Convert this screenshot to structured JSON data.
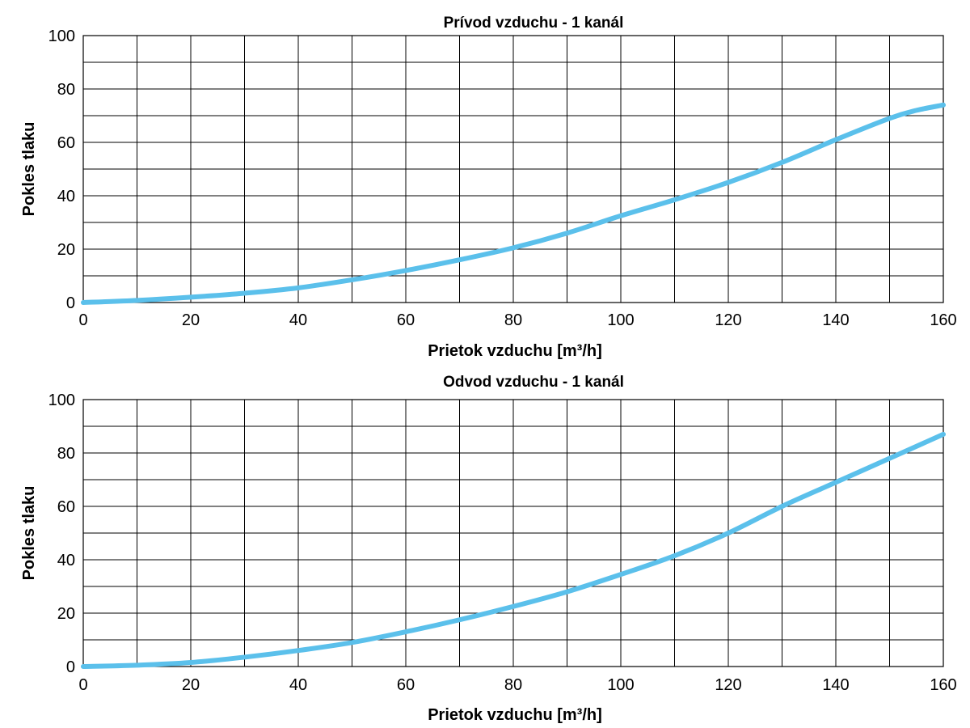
{
  "colors": {
    "series": "#5bc0eb",
    "grid": "#000000"
  },
  "chart_data": [
    {
      "type": "line",
      "title": "Prívod vzduchu - 1 kanál",
      "xlabel": "Prietok vzduchu [m³/h]",
      "ylabel": "Pokles tlaku",
      "xlim": [
        0,
        160
      ],
      "ylim": [
        0,
        100
      ],
      "x_ticks": [
        0,
        20,
        40,
        60,
        80,
        100,
        120,
        140,
        160
      ],
      "y_ticks": [
        0,
        20,
        40,
        60,
        80,
        100
      ],
      "x_tick_labels": [
        "0",
        "20",
        "40",
        "60",
        "80",
        "100",
        "120",
        "140",
        "160"
      ],
      "y_tick_labels": [
        "0",
        "20",
        "40",
        "60",
        "80",
        "100"
      ],
      "grid": true,
      "series": [
        {
          "x": [
            0,
            10,
            20,
            30,
            40,
            50,
            60,
            70,
            80,
            90,
            100,
            110,
            120,
            130,
            140,
            150,
            155,
            160
          ],
          "values": [
            0,
            0.8,
            2,
            3.5,
            5.5,
            8.5,
            12,
            16,
            20.5,
            26,
            32.5,
            38.5,
            45,
            52.5,
            61,
            69,
            72,
            74
          ]
        }
      ]
    },
    {
      "type": "line",
      "title": "Odvod vzduchu - 1 kanál",
      "xlabel": "Prietok vzduchu [m³/h]",
      "ylabel": "Pokles tlaku",
      "xlim": [
        0,
        160
      ],
      "ylim": [
        0,
        100
      ],
      "x_ticks": [
        0,
        20,
        40,
        60,
        80,
        100,
        120,
        140,
        160
      ],
      "y_ticks": [
        0,
        20,
        40,
        60,
        80,
        100
      ],
      "x_tick_labels": [
        "0",
        "20",
        "40",
        "60",
        "80",
        "100",
        "120",
        "140",
        "160"
      ],
      "y_tick_labels": [
        "0",
        "20",
        "40",
        "60",
        "80",
        "100"
      ],
      "grid": true,
      "series": [
        {
          "x": [
            0,
            10,
            20,
            30,
            40,
            50,
            60,
            70,
            80,
            90,
            100,
            110,
            120,
            130,
            140,
            150,
            160
          ],
          "values": [
            0,
            0.5,
            1.5,
            3.5,
            6,
            9,
            13,
            17.5,
            22.5,
            28,
            34.5,
            41.5,
            50,
            60,
            69,
            78,
            87
          ]
        }
      ]
    }
  ]
}
